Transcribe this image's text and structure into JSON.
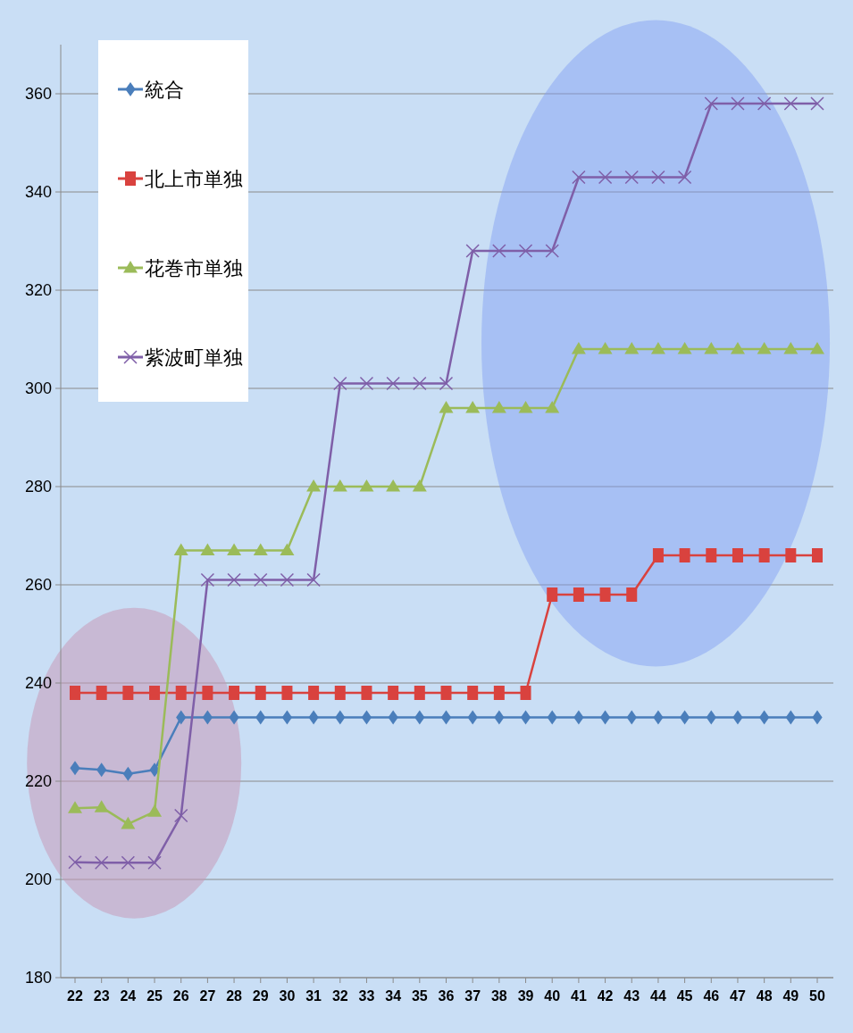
{
  "chart_data": {
    "type": "line",
    "categories": [
      "22",
      "23",
      "24",
      "25",
      "26",
      "27",
      "28",
      "29",
      "30",
      "31",
      "32",
      "33",
      "34",
      "35",
      "36",
      "37",
      "38",
      "39",
      "40",
      "41",
      "42",
      "43",
      "44",
      "45",
      "46",
      "47",
      "48",
      "49",
      "50"
    ],
    "series": [
      {
        "name": "統合",
        "color": "#4a7ebb",
        "marker": "diamond",
        "values": [
          222.7,
          222.3,
          221.5,
          222.3,
          233,
          233,
          233,
          233,
          233,
          233,
          233,
          233,
          233,
          233,
          233,
          233,
          233,
          233,
          233,
          233,
          233,
          233,
          233,
          233,
          233,
          233,
          233,
          233,
          233
        ]
      },
      {
        "name": "北上市単独",
        "color": "#d9423e",
        "marker": "square",
        "values": [
          238,
          238,
          238,
          238,
          238,
          238,
          238,
          238,
          238,
          238,
          238,
          238,
          238,
          238,
          238,
          238,
          238,
          238,
          258,
          258,
          258,
          258,
          266,
          266,
          266,
          266,
          266,
          266,
          266
        ]
      },
      {
        "name": "花巻市単独",
        "color": "#9bbb59",
        "marker": "triangle",
        "values": [
          214.5,
          214.7,
          211.3,
          213.8,
          267,
          267,
          267,
          267,
          267,
          280,
          280,
          280,
          280,
          280,
          296,
          296,
          296,
          296,
          296,
          308,
          308,
          308,
          308,
          308,
          308,
          308,
          308,
          308,
          308
        ]
      },
      {
        "name": "紫波町単独",
        "color": "#7f5fa8",
        "marker": "cross",
        "values": [
          203.5,
          203.4,
          203.4,
          203.4,
          213,
          261,
          261,
          261,
          261,
          261,
          301,
          301,
          301,
          301,
          301,
          328,
          328,
          328,
          328,
          343,
          343,
          343,
          343,
          343,
          358,
          358,
          358,
          358,
          358
        ]
      }
    ],
    "ylim": [
      180,
      370
    ],
    "yticks": [
      180,
      200,
      220,
      240,
      260,
      280,
      300,
      320,
      340,
      360
    ],
    "grid": "y",
    "legend": "top left",
    "line_style": "solid"
  }
}
